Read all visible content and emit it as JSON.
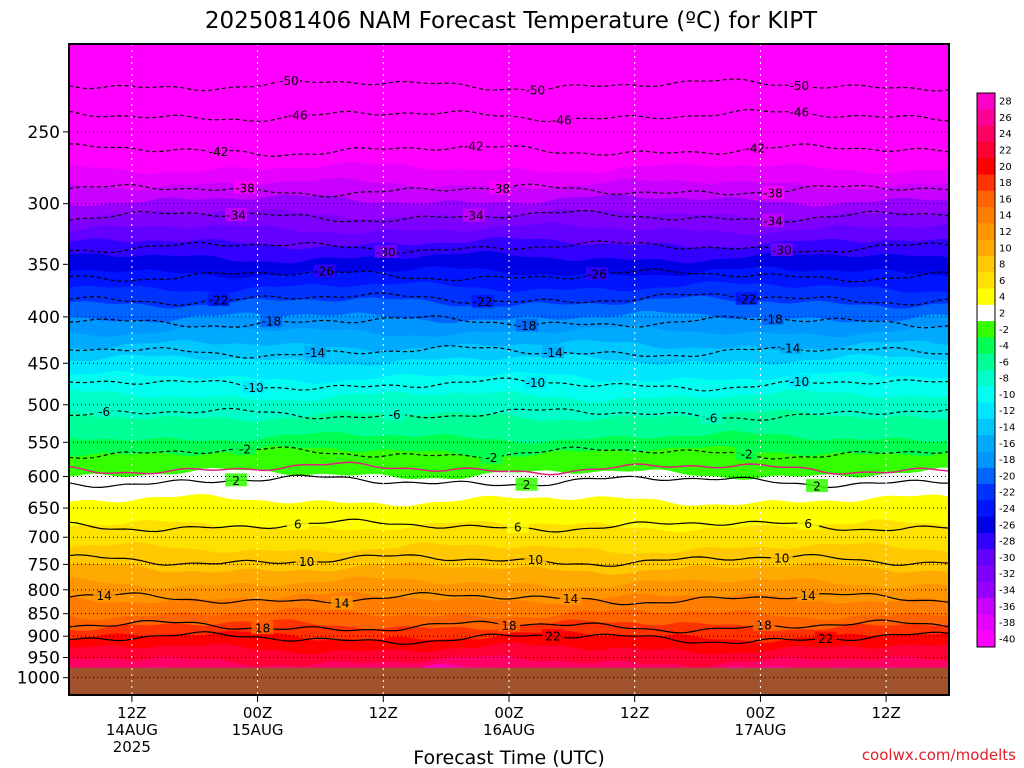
{
  "chart_data": {
    "type": "heatmap",
    "title": "2025081406 NAM Forecast Temperature (ºC) for KIPT",
    "xlabel": "Forecast Time (UTC)",
    "ylabel": "",
    "y_scale": "log-pressure",
    "ylim": [
      1000,
      200
    ],
    "y_ticks": [
      250,
      300,
      350,
      400,
      450,
      500,
      550,
      600,
      650,
      700,
      750,
      800,
      850,
      900,
      950,
      1000
    ],
    "x_ticks": [
      {
        "hour": 6,
        "lines": [
          "12Z",
          "14AUG",
          "2025"
        ]
      },
      {
        "hour": 18,
        "lines": [
          "00Z",
          "15AUG"
        ]
      },
      {
        "hour": 30,
        "lines": [
          "12Z"
        ]
      },
      {
        "hour": 42,
        "lines": [
          "00Z",
          "16AUG"
        ]
      },
      {
        "hour": 54,
        "lines": [
          "12Z"
        ]
      },
      {
        "hour": 66,
        "lines": [
          "00Z",
          "17AUG"
        ]
      },
      {
        "hour": 78,
        "lines": [
          "12Z"
        ]
      }
    ],
    "xlim": [
      0,
      84
    ],
    "surface_pressure_hpa": 975,
    "colorbar": {
      "levels": [
        28,
        26,
        24,
        22,
        20,
        18,
        16,
        14,
        12,
        10,
        8,
        6,
        4,
        2,
        -2,
        -4,
        -6,
        -8,
        -10,
        -12,
        -14,
        -16,
        -18,
        -20,
        -22,
        -24,
        -26,
        -28,
        -30,
        -32,
        -34,
        -36,
        -38,
        -40
      ],
      "labels": [
        "28",
        "26",
        "24",
        "22",
        "20",
        "18",
        "16",
        "14",
        "12",
        "10",
        "8",
        "6",
        "4",
        "2",
        "-2",
        "-4",
        "-6",
        "-8",
        "-10",
        "-12",
        "-14",
        "-16",
        "-18",
        "-20",
        "-22",
        "-24",
        "-26",
        "-28",
        "-30",
        "-32",
        "-34",
        "-36",
        "-38",
        "-40"
      ],
      "colors": [
        "#ff00c8",
        "#ff0096",
        "#ff0064",
        "#ff0032",
        "#ff0000",
        "#ff3200",
        "#ff6400",
        "#ff7d00",
        "#ff9600",
        "#ffaa00",
        "#ffc800",
        "#ffe100",
        "#ffff00",
        "#ffffff",
        "#33ff00",
        "#00ff50",
        "#00ff96",
        "#00ffc8",
        "#00fff0",
        "#00e6ff",
        "#00c8ff",
        "#00aaff",
        "#0096ff",
        "#0064ff",
        "#0032ff",
        "#0014ff",
        "#0000e6",
        "#3200ff",
        "#6400ff",
        "#7d00ff",
        "#9600ff",
        "#c800ff",
        "#e600ff",
        "#ff00ff"
      ]
    },
    "isotherms": [
      {
        "t": "22",
        "p": 905,
        "dashed": false,
        "labels": [
          [
            0.55,
            "22"
          ],
          [
            0.86,
            "22"
          ]
        ]
      },
      {
        "t": "18",
        "p": 878,
        "dashed": false,
        "labels": [
          [
            0.22,
            "18"
          ],
          [
            0.5,
            "18"
          ],
          [
            0.79,
            "18"
          ]
        ]
      },
      {
        "t": "14",
        "p": 818,
        "dashed": false,
        "labels": [
          [
            0.04,
            "14"
          ],
          [
            0.31,
            "14"
          ],
          [
            0.57,
            "14"
          ],
          [
            0.84,
            "14"
          ]
        ]
      },
      {
        "t": "10",
        "p": 742,
        "dashed": false,
        "labels": [
          [
            0.27,
            "10"
          ],
          [
            0.53,
            "10"
          ],
          [
            0.81,
            "10"
          ]
        ]
      },
      {
        "t": "6",
        "p": 680,
        "dashed": false,
        "labels": [
          [
            0.26,
            "6"
          ],
          [
            0.51,
            "6"
          ],
          [
            0.84,
            "6"
          ]
        ]
      },
      {
        "t": "2",
        "p": 607,
        "dashed": false,
        "labels": [
          [
            0.19,
            "2"
          ],
          [
            0.52,
            "2"
          ],
          [
            0.85,
            "2"
          ]
        ]
      },
      {
        "t": "-2",
        "p": 565,
        "dashed": true,
        "labels": [
          [
            0.2,
            "-2"
          ],
          [
            0.48,
            "-2"
          ],
          [
            0.77,
            "-2"
          ]
        ]
      },
      {
        "t": "-6",
        "p": 512,
        "dashed": true,
        "labels": [
          [
            0.04,
            "-6"
          ],
          [
            0.37,
            "-6"
          ],
          [
            0.73,
            "-6"
          ]
        ]
      },
      {
        "t": "-10",
        "p": 475,
        "dashed": true,
        "labels": [
          [
            0.21,
            "-10"
          ],
          [
            0.53,
            "-10"
          ],
          [
            0.83,
            "-10"
          ]
        ]
      },
      {
        "t": "-14",
        "p": 437,
        "dashed": true,
        "labels": [
          [
            0.28,
            "-14"
          ],
          [
            0.55,
            "-14"
          ],
          [
            0.82,
            "-14"
          ]
        ]
      },
      {
        "t": "-18",
        "p": 405,
        "dashed": true,
        "labels": [
          [
            0.23,
            "-18"
          ],
          [
            0.52,
            "-18"
          ],
          [
            0.8,
            "-18"
          ]
        ]
      },
      {
        "t": "-22",
        "p": 382,
        "dashed": true,
        "labels": [
          [
            0.17,
            "-22"
          ],
          [
            0.47,
            "-22"
          ],
          [
            0.77,
            "-22"
          ]
        ]
      },
      {
        "t": "-26",
        "p": 360,
        "dashed": true,
        "labels": [
          [
            0.29,
            "-26"
          ],
          [
            0.6,
            "-26"
          ]
        ]
      },
      {
        "t": "-30",
        "p": 335,
        "dashed": true,
        "labels": [
          [
            0.36,
            "-30"
          ],
          [
            0.81,
            "-30"
          ]
        ]
      },
      {
        "t": "-34",
        "p": 310,
        "dashed": true,
        "labels": [
          [
            0.19,
            "-34"
          ],
          [
            0.46,
            "-34"
          ],
          [
            0.8,
            "-34"
          ]
        ]
      },
      {
        "t": "-38",
        "p": 290,
        "dashed": true,
        "labels": [
          [
            0.2,
            "-38"
          ],
          [
            0.49,
            "-38"
          ],
          [
            0.8,
            "-38"
          ]
        ]
      },
      {
        "t": "-42",
        "p": 262,
        "dashed": true,
        "labels": [
          [
            0.17,
            "-42"
          ],
          [
            0.46,
            "-42"
          ],
          [
            0.78,
            "-42"
          ]
        ]
      },
      {
        "t": "-46",
        "p": 240,
        "dashed": true,
        "labels": [
          [
            0.26,
            "-46"
          ],
          [
            0.56,
            "-46"
          ],
          [
            0.83,
            "-46"
          ]
        ]
      },
      {
        "t": "-50",
        "p": 222,
        "dashed": true,
        "labels": [
          [
            0.25,
            "-50"
          ],
          [
            0.53,
            "-50"
          ],
          [
            0.83,
            "-50"
          ]
        ]
      }
    ],
    "freezing_line": {
      "t": "0",
      "p": 588,
      "color": "#e0207a"
    }
  },
  "watermark": "coolwx.com/modelts"
}
